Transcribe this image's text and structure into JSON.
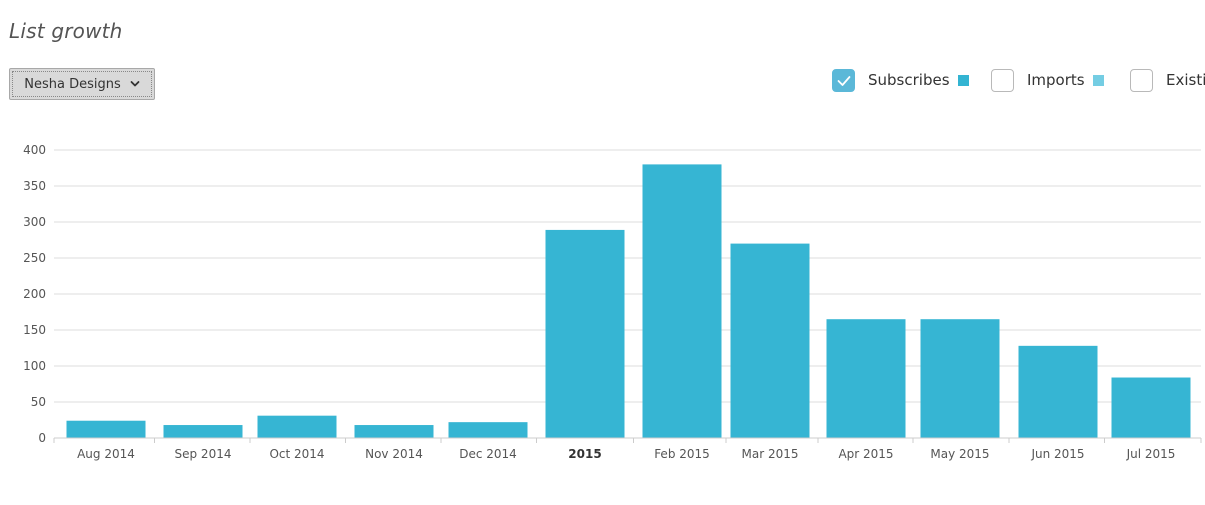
{
  "title": "List growth",
  "dropdown": {
    "label": "Nesha Designs",
    "icon": "chevron-down-icon"
  },
  "legend": [
    {
      "label": "Subscribes",
      "checked": true,
      "color": "#33b4d2"
    },
    {
      "label": "Imports",
      "checked": false,
      "color": "#74cde3"
    },
    {
      "label": "Existi",
      "checked": false,
      "color": ""
    }
  ],
  "colors": {
    "bar": "#36b5d3",
    "grid": "#dddddd",
    "axis": "#cccccc",
    "checkbox_checked": "#5bb8d8"
  },
  "chart_data": {
    "type": "bar",
    "categories": [
      "Aug 2014",
      "Sep 2014",
      "Oct 2014",
      "Nov 2014",
      "Dec 2014",
      "2015",
      "Feb 2015",
      "Mar 2015",
      "Apr 2015",
      "May 2015",
      "Jun 2015",
      "Jul 2015"
    ],
    "bold_categories": [
      "2015"
    ],
    "series": [
      {
        "name": "Subscribes",
        "values": [
          24,
          18,
          31,
          18,
          22,
          289,
          380,
          270,
          165,
          165,
          128,
          84
        ]
      }
    ],
    "yticks": [
      0,
      50,
      100,
      150,
      200,
      250,
      300,
      350,
      400
    ],
    "ylim": [
      0,
      400
    ],
    "grid": true,
    "legend_position": "top-right"
  }
}
